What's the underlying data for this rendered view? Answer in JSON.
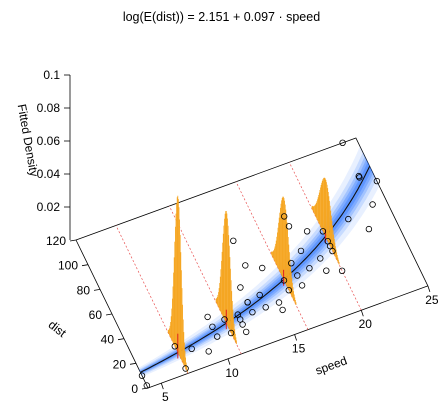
{
  "chart_data": {
    "type": "scatter",
    "subtype": "3d-density-surface",
    "title": "log(E(dist)) = 2.151 + 0.097 · speed",
    "xlabel": "speed",
    "ylabel": "dist",
    "zlabel": "Fitted Density",
    "xlim": [
      4,
      25
    ],
    "ylim": [
      0,
      120
    ],
    "zlim": [
      0,
      0.1
    ],
    "x_ticks": [
      "5",
      "10",
      "15",
      "20",
      "25"
    ],
    "y_ticks": [
      "0",
      "20",
      "40",
      "60",
      "80",
      "100",
      "120"
    ],
    "z_ticks": [
      "0.02",
      "0.04",
      "0.06",
      "0.08",
      "0.1"
    ],
    "model": {
      "intercept": 2.151,
      "slope": 0.097
    },
    "density_slices_speed": [
      7,
      11,
      16,
      20
    ],
    "density_slice_peak": [
      0.095,
      0.068,
      0.05,
      0.035
    ],
    "points": [
      [
        4,
        2
      ],
      [
        4,
        10
      ],
      [
        7,
        4
      ],
      [
        7,
        22
      ],
      [
        8,
        16
      ],
      [
        9,
        10
      ],
      [
        10,
        18
      ],
      [
        10,
        26
      ],
      [
        10,
        34
      ],
      [
        11,
        17
      ],
      [
        11,
        28
      ],
      [
        12,
        14
      ],
      [
        12,
        20
      ],
      [
        12,
        24
      ],
      [
        12,
        28
      ],
      [
        13,
        26
      ],
      [
        13,
        34
      ],
      [
        13,
        34
      ],
      [
        13,
        46
      ],
      [
        14,
        26
      ],
      [
        14,
        36
      ],
      [
        14,
        60
      ],
      [
        14,
        80
      ],
      [
        15,
        20
      ],
      [
        15,
        26
      ],
      [
        15,
        54
      ],
      [
        16,
        32
      ],
      [
        16,
        40
      ],
      [
        17,
        32
      ],
      [
        17,
        40
      ],
      [
        17,
        50
      ],
      [
        18,
        42
      ],
      [
        18,
        56
      ],
      [
        18,
        76
      ],
      [
        18,
        84
      ],
      [
        19,
        36
      ],
      [
        19,
        46
      ],
      [
        19,
        68
      ],
      [
        20,
        32
      ],
      [
        20,
        48
      ],
      [
        20,
        52
      ],
      [
        20,
        56
      ],
      [
        20,
        64
      ],
      [
        22,
        66
      ],
      [
        23,
        54
      ],
      [
        24,
        70
      ],
      [
        24,
        92
      ],
      [
        24,
        93
      ],
      [
        24,
        120
      ],
      [
        25,
        85
      ]
    ],
    "colors": {
      "surface": "#1f6fff",
      "density": "#f5a623",
      "density_center": "#e02020",
      "guide_lines": "#e85050",
      "points": "#000000"
    }
  }
}
